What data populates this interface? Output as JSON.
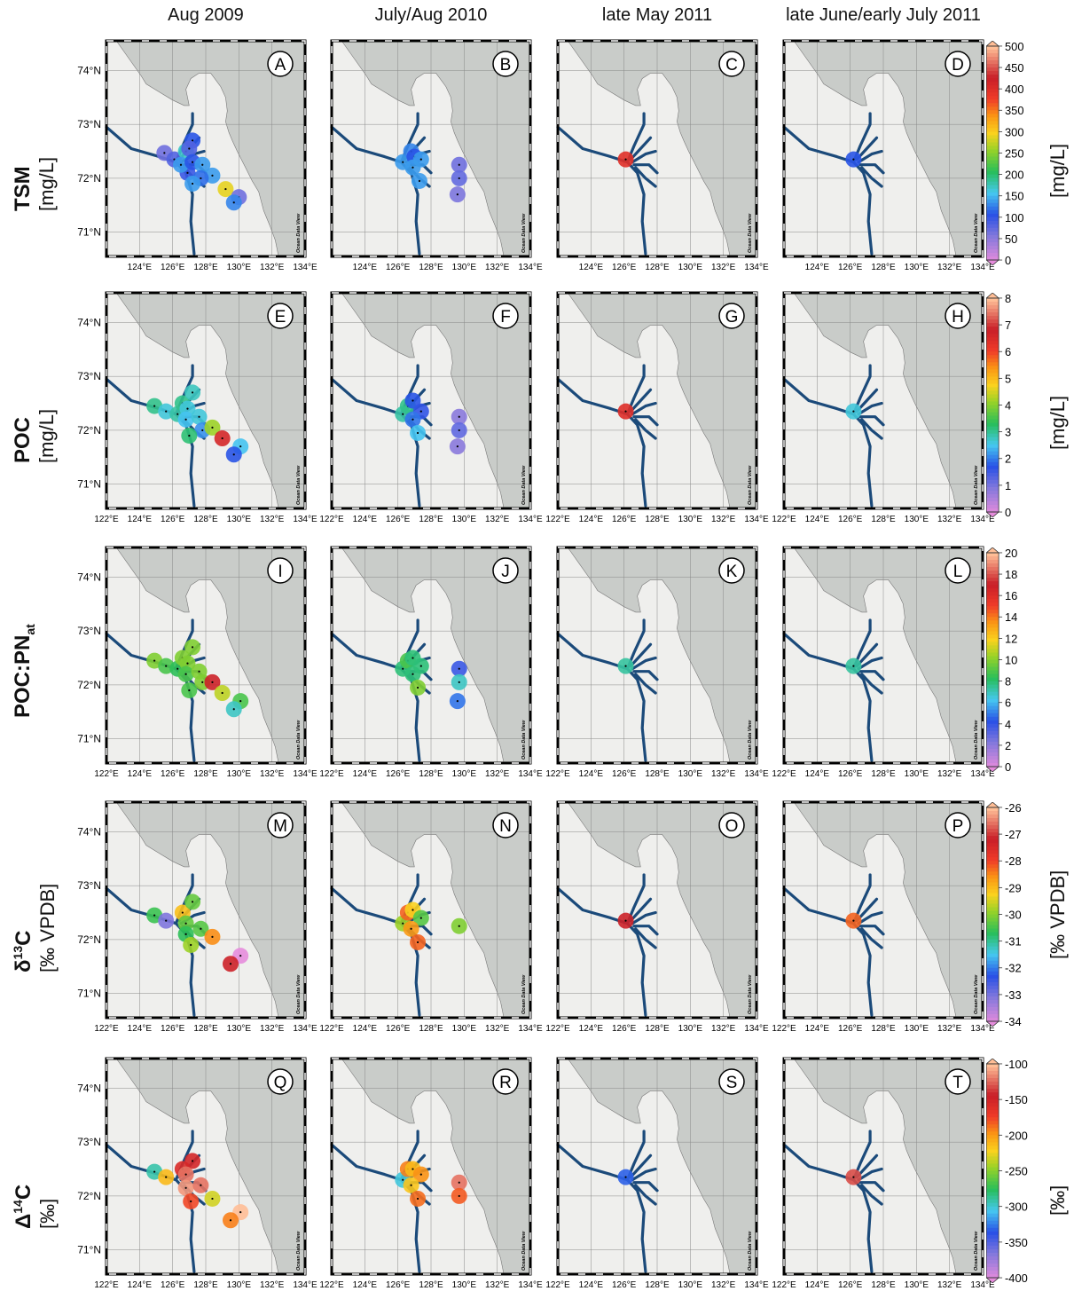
{
  "column_titles": [
    "Aug 2009",
    "July/Aug 2010",
    "late May 2011",
    "late June/early July 2011"
  ],
  "rows": [
    {
      "label": "TSM",
      "unit": "[mg/L]",
      "colorbar_unit": "[mg/L]",
      "lon_ticks": [
        "124°E",
        "126°E",
        "128°E",
        "130°E",
        "132°E",
        "134°E"
      ],
      "colorbar": {
        "ticks": [
          "500",
          "450",
          "400",
          "350",
          "300",
          "250",
          "200",
          "150",
          "100",
          "50",
          "0"
        ],
        "nonlinear_scale": true
      },
      "panels": [
        {
          "letter": "A",
          "stations": [
            {
              "lon": 125.5,
              "lat": 72.47,
              "value": 10
            },
            {
              "lon": 126.1,
              "lat": 72.35,
              "value": 15
            },
            {
              "lon": 126.8,
              "lat": 72.5,
              "value": 60
            },
            {
              "lon": 127.2,
              "lat": 72.7,
              "value": 25
            },
            {
              "lon": 127.0,
              "lat": 72.55,
              "value": 15
            },
            {
              "lon": 126.9,
              "lat": 72.1,
              "value": 20
            },
            {
              "lon": 126.5,
              "lat": 72.25,
              "value": 40
            },
            {
              "lon": 127.2,
              "lat": 72.3,
              "value": 25
            },
            {
              "lon": 127.8,
              "lat": 72.25,
              "value": 40
            },
            {
              "lon": 128.4,
              "lat": 72.05,
              "value": 40
            },
            {
              "lon": 127.7,
              "lat": 72.0,
              "value": 30
            },
            {
              "lon": 127.2,
              "lat": 71.9,
              "value": 40
            },
            {
              "lon": 129.2,
              "lat": 71.8,
              "value": 170
            },
            {
              "lon": 130.0,
              "lat": 71.65,
              "value": 10
            },
            {
              "lon": 129.7,
              "lat": 71.55,
              "value": 35
            }
          ]
        },
        {
          "letter": "B",
          "stations": [
            {
              "lon": 126.3,
              "lat": 72.3,
              "value": 40
            },
            {
              "lon": 126.8,
              "lat": 72.5,
              "value": 35
            },
            {
              "lon": 127.0,
              "lat": 72.4,
              "value": 25
            },
            {
              "lon": 127.4,
              "lat": 72.35,
              "value": 40
            },
            {
              "lon": 126.9,
              "lat": 72.2,
              "value": 40
            },
            {
              "lon": 127.3,
              "lat": 71.95,
              "value": 40
            },
            {
              "lon": 129.7,
              "lat": 72.25,
              "value": 10
            },
            {
              "lon": 129.7,
              "lat": 72.0,
              "value": 12
            },
            {
              "lon": 129.6,
              "lat": 71.7,
              "value": 8
            }
          ]
        },
        {
          "letter": "C",
          "stations": [
            {
              "lon": 126.1,
              "lat": 72.35,
              "value": 320
            }
          ]
        },
        {
          "letter": "D",
          "stations": [
            {
              "lon": 126.2,
              "lat": 72.35,
              "value": 25
            }
          ]
        }
      ]
    },
    {
      "label": "POC",
      "unit": "[mg/L]",
      "colorbar_unit": "[mg/L]",
      "lon_ticks": [
        "122°E",
        "124°E",
        "126°E",
        "128°E",
        "130°E",
        "132°E",
        "134°E"
      ],
      "colorbar": {
        "ticks": [
          "8",
          "7",
          "6",
          "5",
          "4",
          "3",
          "2",
          "1",
          "0"
        ],
        "nonlinear_scale": true
      },
      "panels": [
        {
          "letter": "E",
          "stations": [
            {
              "lon": 124.9,
              "lat": 72.45,
              "value": 1.2
            },
            {
              "lon": 125.6,
              "lat": 72.35,
              "value": 0.9
            },
            {
              "lon": 126.3,
              "lat": 72.3,
              "value": 1.1
            },
            {
              "lon": 126.6,
              "lat": 72.5,
              "value": 1.2
            },
            {
              "lon": 127.2,
              "lat": 72.7,
              "value": 1.0
            },
            {
              "lon": 126.9,
              "lat": 72.4,
              "value": 0.9
            },
            {
              "lon": 126.8,
              "lat": 72.2,
              "value": 0.8
            },
            {
              "lon": 127.6,
              "lat": 72.25,
              "value": 0.9
            },
            {
              "lon": 127.8,
              "lat": 72.0,
              "value": 0.6
            },
            {
              "lon": 127.0,
              "lat": 71.9,
              "value": 1.3
            },
            {
              "lon": 128.4,
              "lat": 72.05,
              "value": 2.2
            },
            {
              "lon": 129.0,
              "lat": 71.85,
              "value": 5.5
            },
            {
              "lon": 130.1,
              "lat": 71.7,
              "value": 0.8
            },
            {
              "lon": 129.7,
              "lat": 71.55,
              "value": 0.4
            }
          ]
        },
        {
          "letter": "F",
          "stations": [
            {
              "lon": 126.3,
              "lat": 72.3,
              "value": 1.1
            },
            {
              "lon": 126.6,
              "lat": 72.45,
              "value": 1.2
            },
            {
              "lon": 126.9,
              "lat": 72.55,
              "value": 0.4
            },
            {
              "lon": 127.4,
              "lat": 72.35,
              "value": 0.35
            },
            {
              "lon": 126.9,
              "lat": 72.2,
              "value": 0.5
            },
            {
              "lon": 127.2,
              "lat": 71.95,
              "value": 0.8
            },
            {
              "lon": 129.7,
              "lat": 72.25,
              "value": 0.1
            },
            {
              "lon": 129.7,
              "lat": 72.0,
              "value": 0.2
            },
            {
              "lon": 129.6,
              "lat": 71.7,
              "value": 0.1
            }
          ]
        },
        {
          "letter": "G",
          "stations": [
            {
              "lon": 126.1,
              "lat": 72.35,
              "value": 5.2
            }
          ]
        },
        {
          "letter": "H",
          "stations": [
            {
              "lon": 126.2,
              "lat": 72.35,
              "value": 0.9
            }
          ]
        }
      ]
    },
    {
      "label": "POC:PN",
      "label_sub": "at",
      "unit": "",
      "colorbar_unit": "",
      "lon_ticks": [
        "122°E",
        "124°E",
        "126°E",
        "128°E",
        "130°E",
        "132°E",
        "134°E"
      ],
      "colorbar": {
        "ticks": [
          "20",
          "18",
          "16",
          "14",
          "12",
          "10",
          "8",
          "6",
          "4",
          "2",
          "0"
        ],
        "nonlinear_scale": false
      },
      "panels": [
        {
          "letter": "I",
          "stations": [
            {
              "lon": 124.9,
              "lat": 72.45,
              "value": 10
            },
            {
              "lon": 125.6,
              "lat": 72.35,
              "value": 9
            },
            {
              "lon": 126.3,
              "lat": 72.3,
              "value": 8.5
            },
            {
              "lon": 126.6,
              "lat": 72.5,
              "value": 10
            },
            {
              "lon": 127.2,
              "lat": 72.7,
              "value": 10
            },
            {
              "lon": 126.9,
              "lat": 72.4,
              "value": 10
            },
            {
              "lon": 126.8,
              "lat": 72.2,
              "value": 9
            },
            {
              "lon": 127.6,
              "lat": 72.25,
              "value": 10
            },
            {
              "lon": 127.8,
              "lat": 72.05,
              "value": 10
            },
            {
              "lon": 127.0,
              "lat": 71.9,
              "value": 9
            },
            {
              "lon": 128.4,
              "lat": 72.05,
              "value": 17
            },
            {
              "lon": 129.0,
              "lat": 71.85,
              "value": 11
            },
            {
              "lon": 130.1,
              "lat": 71.7,
              "value": 9
            },
            {
              "lon": 129.7,
              "lat": 71.55,
              "value": 7
            }
          ]
        },
        {
          "letter": "J",
          "stations": [
            {
              "lon": 126.3,
              "lat": 72.3,
              "value": 8
            },
            {
              "lon": 126.6,
              "lat": 72.45,
              "value": 9
            },
            {
              "lon": 126.9,
              "lat": 72.5,
              "value": 8
            },
            {
              "lon": 127.4,
              "lat": 72.35,
              "value": 8
            },
            {
              "lon": 126.9,
              "lat": 72.2,
              "value": 8
            },
            {
              "lon": 127.2,
              "lat": 71.95,
              "value": 10
            },
            {
              "lon": 129.7,
              "lat": 72.3,
              "value": 4
            },
            {
              "lon": 129.7,
              "lat": 72.05,
              "value": 7
            },
            {
              "lon": 129.6,
              "lat": 71.7,
              "value": 5
            }
          ]
        },
        {
          "letter": "K",
          "stations": [
            {
              "lon": 126.1,
              "lat": 72.35,
              "value": 7.5
            }
          ]
        },
        {
          "letter": "L",
          "stations": [
            {
              "lon": 126.2,
              "lat": 72.35,
              "value": 7.5
            }
          ]
        }
      ]
    },
    {
      "label": "δ13C",
      "label_sup": "13",
      "unit": "[‰ VPDB]",
      "colorbar_unit": "[‰ VPDB]",
      "lon_ticks": [
        "122°E",
        "124°E",
        "126°E",
        "128°E",
        "130°E",
        "132°E",
        "134°E"
      ],
      "colorbar": {
        "ticks": [
          "-26",
          "-27",
          "-28",
          "-29",
          "-30",
          "-31",
          "-32",
          "-33",
          "-34"
        ],
        "nonlinear_scale": false
      },
      "panels": [
        {
          "letter": "M",
          "stations": [
            {
              "lon": 124.9,
              "lat": 72.45,
              "value": -30.5
            },
            {
              "lon": 125.6,
              "lat": 72.35,
              "value": -33
            },
            {
              "lon": 126.6,
              "lat": 72.5,
              "value": -29
            },
            {
              "lon": 127.2,
              "lat": 72.7,
              "value": -30.2
            },
            {
              "lon": 126.8,
              "lat": 72.3,
              "value": -30.2
            },
            {
              "lon": 126.8,
              "lat": 72.1,
              "value": -30.6
            },
            {
              "lon": 127.7,
              "lat": 72.2,
              "value": -30.3
            },
            {
              "lon": 127.1,
              "lat": 71.9,
              "value": -29.8
            },
            {
              "lon": 128.4,
              "lat": 72.05,
              "value": -28.5
            },
            {
              "lon": 130.1,
              "lat": 71.7,
              "value": -34
            },
            {
              "lon": 129.5,
              "lat": 71.55,
              "value": -27.2
            }
          ]
        },
        {
          "letter": "N",
          "stations": [
            {
              "lon": 126.3,
              "lat": 72.3,
              "value": -29.8
            },
            {
              "lon": 126.6,
              "lat": 72.5,
              "value": -28.2
            },
            {
              "lon": 126.9,
              "lat": 72.55,
              "value": -29.2
            },
            {
              "lon": 127.4,
              "lat": 72.4,
              "value": -30.3
            },
            {
              "lon": 126.8,
              "lat": 72.2,
              "value": -28.6
            },
            {
              "lon": 127.2,
              "lat": 71.95,
              "value": -28.2
            },
            {
              "lon": 129.7,
              "lat": 72.25,
              "value": -30
            }
          ]
        },
        {
          "letter": "O",
          "stations": [
            {
              "lon": 126.1,
              "lat": 72.35,
              "value": -27.2
            }
          ]
        },
        {
          "letter": "P",
          "stations": [
            {
              "lon": 126.2,
              "lat": 72.35,
              "value": -28.2
            }
          ]
        }
      ]
    },
    {
      "label": "Δ14C",
      "label_sup": "14",
      "unit": "[‰]",
      "colorbar_unit": "[‰]",
      "lon_ticks": [
        "122°E",
        "124°E",
        "126°E",
        "128°E",
        "130°E",
        "132°E",
        "134°E"
      ],
      "colorbar": {
        "ticks": [
          "-100",
          "-150",
          "-200",
          "-250",
          "-300",
          "-350",
          "-400"
        ],
        "nonlinear_scale": false
      },
      "panels": [
        {
          "letter": "Q",
          "stations": [
            {
              "lon": 124.9,
              "lat": 72.45,
              "value": -290
            },
            {
              "lon": 125.6,
              "lat": 72.35,
              "value": -210
            },
            {
              "lon": 126.6,
              "lat": 72.5,
              "value": -155
            },
            {
              "lon": 127.2,
              "lat": 72.65,
              "value": -150
            },
            {
              "lon": 126.8,
              "lat": 72.4,
              "value": -120
            },
            {
              "lon": 126.8,
              "lat": 72.15,
              "value": -110
            },
            {
              "lon": 127.7,
              "lat": 72.2,
              "value": -120
            },
            {
              "lon": 127.1,
              "lat": 71.9,
              "value": -175
            },
            {
              "lon": 128.4,
              "lat": 71.95,
              "value": -230
            },
            {
              "lon": 130.1,
              "lat": 71.7,
              "value": -90
            },
            {
              "lon": 129.5,
              "lat": 71.55,
              "value": -190
            }
          ]
        },
        {
          "letter": "R",
          "stations": [
            {
              "lon": 126.3,
              "lat": 72.3,
              "value": -300
            },
            {
              "lon": 126.6,
              "lat": 72.5,
              "value": -190
            },
            {
              "lon": 126.9,
              "lat": 72.5,
              "value": -210
            },
            {
              "lon": 127.4,
              "lat": 72.4,
              "value": -195
            },
            {
              "lon": 126.8,
              "lat": 72.2,
              "value": -215
            },
            {
              "lon": 127.2,
              "lat": 71.95,
              "value": -185
            },
            {
              "lon": 129.7,
              "lat": 72.25,
              "value": -120
            },
            {
              "lon": 129.7,
              "lat": 72.0,
              "value": -180
            }
          ]
        },
        {
          "letter": "S",
          "stations": [
            {
              "lon": 126.1,
              "lat": 72.35,
              "value": -330
            }
          ]
        },
        {
          "letter": "T",
          "stations": [
            {
              "lon": 126.2,
              "lat": 72.35,
              "value": -130
            }
          ]
        }
      ]
    }
  ],
  "lat_ticks": [
    "74°N",
    "73°N",
    "72°N",
    "71°N"
  ],
  "watermark": "Ocean Data View",
  "colors": {
    "ocean": "#c9ccc9",
    "land": "#efefed",
    "river": "#1b4a7a",
    "grid": "#888888"
  }
}
